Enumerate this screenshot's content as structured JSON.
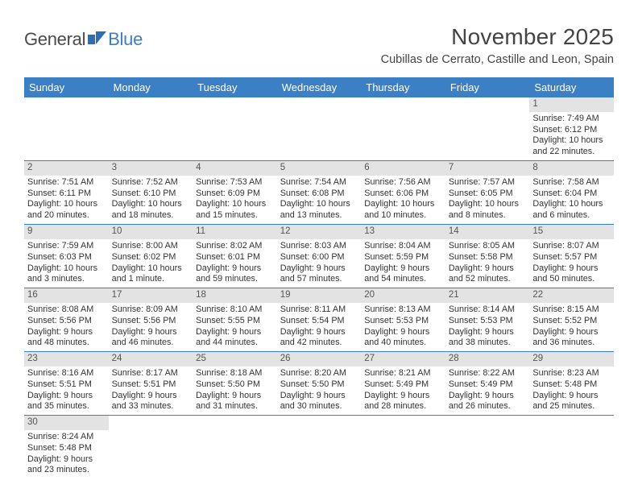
{
  "logo": {
    "text_a": "General",
    "text_b": "Blue"
  },
  "header": {
    "title": "November 2025",
    "subtitle": "Cubillas de Cerrato, Castille and Leon, Spain"
  },
  "colors": {
    "header_bg": "#3b7fc4",
    "header_text": "#ffffff",
    "daybar_bg": "#e3e3e3",
    "cell_border": "#3b7fc4"
  },
  "weekdays": [
    "Sunday",
    "Monday",
    "Tuesday",
    "Wednesday",
    "Thursday",
    "Friday",
    "Saturday"
  ],
  "weeks": [
    [
      null,
      null,
      null,
      null,
      null,
      null,
      {
        "n": "1",
        "sunrise": "7:49 AM",
        "sunset": "6:12 PM",
        "day_h": "10",
        "day_m": "22"
      }
    ],
    [
      {
        "n": "2",
        "sunrise": "7:51 AM",
        "sunset": "6:11 PM",
        "day_h": "10",
        "day_m": "20"
      },
      {
        "n": "3",
        "sunrise": "7:52 AM",
        "sunset": "6:10 PM",
        "day_h": "10",
        "day_m": "18"
      },
      {
        "n": "4",
        "sunrise": "7:53 AM",
        "sunset": "6:09 PM",
        "day_h": "10",
        "day_m": "15"
      },
      {
        "n": "5",
        "sunrise": "7:54 AM",
        "sunset": "6:08 PM",
        "day_h": "10",
        "day_m": "13"
      },
      {
        "n": "6",
        "sunrise": "7:56 AM",
        "sunset": "6:06 PM",
        "day_h": "10",
        "day_m": "10"
      },
      {
        "n": "7",
        "sunrise": "7:57 AM",
        "sunset": "6:05 PM",
        "day_h": "10",
        "day_m": "8"
      },
      {
        "n": "8",
        "sunrise": "7:58 AM",
        "sunset": "6:04 PM",
        "day_h": "10",
        "day_m": "6"
      }
    ],
    [
      {
        "n": "9",
        "sunrise": "7:59 AM",
        "sunset": "6:03 PM",
        "day_h": "10",
        "day_m": "3"
      },
      {
        "n": "10",
        "sunrise": "8:00 AM",
        "sunset": "6:02 PM",
        "day_h": "10",
        "day_m": "1",
        "m_unit": "minute"
      },
      {
        "n": "11",
        "sunrise": "8:02 AM",
        "sunset": "6:01 PM",
        "day_h": "9",
        "day_m": "59"
      },
      {
        "n": "12",
        "sunrise": "8:03 AM",
        "sunset": "6:00 PM",
        "day_h": "9",
        "day_m": "57"
      },
      {
        "n": "13",
        "sunrise": "8:04 AM",
        "sunset": "5:59 PM",
        "day_h": "9",
        "day_m": "54"
      },
      {
        "n": "14",
        "sunrise": "8:05 AM",
        "sunset": "5:58 PM",
        "day_h": "9",
        "day_m": "52"
      },
      {
        "n": "15",
        "sunrise": "8:07 AM",
        "sunset": "5:57 PM",
        "day_h": "9",
        "day_m": "50"
      }
    ],
    [
      {
        "n": "16",
        "sunrise": "8:08 AM",
        "sunset": "5:56 PM",
        "day_h": "9",
        "day_m": "48"
      },
      {
        "n": "17",
        "sunrise": "8:09 AM",
        "sunset": "5:56 PM",
        "day_h": "9",
        "day_m": "46"
      },
      {
        "n": "18",
        "sunrise": "8:10 AM",
        "sunset": "5:55 PM",
        "day_h": "9",
        "day_m": "44"
      },
      {
        "n": "19",
        "sunrise": "8:11 AM",
        "sunset": "5:54 PM",
        "day_h": "9",
        "day_m": "42"
      },
      {
        "n": "20",
        "sunrise": "8:13 AM",
        "sunset": "5:53 PM",
        "day_h": "9",
        "day_m": "40"
      },
      {
        "n": "21",
        "sunrise": "8:14 AM",
        "sunset": "5:53 PM",
        "day_h": "9",
        "day_m": "38"
      },
      {
        "n": "22",
        "sunrise": "8:15 AM",
        "sunset": "5:52 PM",
        "day_h": "9",
        "day_m": "36"
      }
    ],
    [
      {
        "n": "23",
        "sunrise": "8:16 AM",
        "sunset": "5:51 PM",
        "day_h": "9",
        "day_m": "35"
      },
      {
        "n": "24",
        "sunrise": "8:17 AM",
        "sunset": "5:51 PM",
        "day_h": "9",
        "day_m": "33"
      },
      {
        "n": "25",
        "sunrise": "8:18 AM",
        "sunset": "5:50 PM",
        "day_h": "9",
        "day_m": "31"
      },
      {
        "n": "26",
        "sunrise": "8:20 AM",
        "sunset": "5:50 PM",
        "day_h": "9",
        "day_m": "30"
      },
      {
        "n": "27",
        "sunrise": "8:21 AM",
        "sunset": "5:49 PM",
        "day_h": "9",
        "day_m": "28"
      },
      {
        "n": "28",
        "sunrise": "8:22 AM",
        "sunset": "5:49 PM",
        "day_h": "9",
        "day_m": "26"
      },
      {
        "n": "29",
        "sunrise": "8:23 AM",
        "sunset": "5:48 PM",
        "day_h": "9",
        "day_m": "25"
      }
    ],
    [
      {
        "n": "30",
        "sunrise": "8:24 AM",
        "sunset": "5:48 PM",
        "day_h": "9",
        "day_m": "23"
      },
      null,
      null,
      null,
      null,
      null,
      null
    ]
  ],
  "labels": {
    "sunrise": "Sunrise:",
    "sunset": "Sunset:",
    "daylight": "Daylight:",
    "hours": "hours",
    "and": "and",
    "minutes_default": "minutes"
  }
}
